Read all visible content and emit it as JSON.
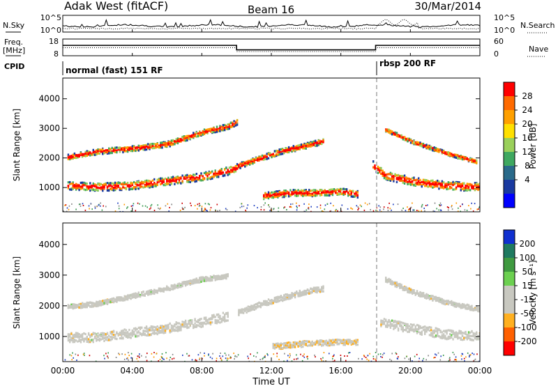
{
  "header": {
    "radar": "Adak West (fitACF)",
    "beam": "Beam 16",
    "date": "30/Mar/2014"
  },
  "noise_panel": {
    "left_label": "N.Sky",
    "right_label": "N.Search",
    "left_ticks": [
      "10^5",
      "10^0"
    ],
    "right_ticks": [
      "10^5",
      "10^0"
    ]
  },
  "freq_panel": {
    "left_label_1": "Freq.",
    "left_label_2": "[MHz]",
    "left_ticks": [
      "18",
      "8"
    ],
    "right_ticks": [
      "60",
      "0"
    ],
    "right_label": "Nave",
    "freq_steps": [
      {
        "t_start": 0,
        "t_end": 10,
        "level": 0.62
      },
      {
        "t_start": 10,
        "t_end": 18,
        "level": 0.35
      },
      {
        "t_start": 18,
        "t_end": 24,
        "level": 0.62
      }
    ],
    "nave_steps": [
      {
        "t_start": 0,
        "t_end": 10,
        "level": 0.48
      },
      {
        "t_start": 10,
        "t_end": 18,
        "level": 0.25
      },
      {
        "t_start": 18,
        "t_end": 24,
        "level": 0.48
      }
    ]
  },
  "cpid": {
    "label": "CPID",
    "segments": [
      {
        "t_start": 0,
        "t_end": 18,
        "text": "normal (fast) 151 RF"
      },
      {
        "t_start": 18,
        "t_end": 24,
        "text": "rbsp 200 RF"
      }
    ]
  },
  "power_panel": {
    "ylabel": "Slant Range [km]",
    "colorbar_title": "Power [dB]",
    "colorbar_ticks": [
      "28",
      "24",
      "20",
      "16",
      "12",
      "8",
      "4"
    ],
    "colorbar_colors": [
      "#ff0000",
      "#ff6a00",
      "#ffa000",
      "#ffe000",
      "#9ad05a",
      "#3fa860",
      "#2a6a8a",
      "#1a3aa0",
      "#0000ff"
    ]
  },
  "velocity_panel": {
    "ylabel": "Slant Range [km]",
    "colorbar_title": "Velocity [m s⁻¹]",
    "colorbar_ticks": [
      "200",
      "100",
      "50",
      "15",
      "-15",
      "-50",
      "-100",
      "-200"
    ],
    "colorbar_colors": [
      "#1030d0",
      "#1f7a60",
      "#3f9a40",
      "#6cd050",
      "#c8c8c0",
      "#c8c8c0",
      "#ffb020",
      "#ff6000",
      "#ff0000"
    ]
  },
  "xaxis": {
    "label": "Time UT",
    "ticks": [
      "00:00",
      "04:00",
      "08:00",
      "12:00",
      "16:00",
      "20:00",
      "00:00"
    ]
  },
  "chart_data": {
    "type": "heatmap",
    "x_range_hours": [
      0,
      24
    ],
    "y_range_km": [
      180,
      4700
    ],
    "yticks_km": [
      1000,
      2000,
      3000,
      4000
    ],
    "power_bands": [
      {
        "name": "lower band",
        "points": [
          [
            0.2,
            1100
          ],
          [
            2,
            1050
          ],
          [
            4,
            1100
          ],
          [
            6,
            1250
          ],
          [
            8,
            1400
          ],
          [
            9.5,
            1600
          ],
          [
            10,
            1700
          ]
        ],
        "width_km": 260
      },
      {
        "name": "upper band",
        "points": [
          [
            0.2,
            2050
          ],
          [
            2,
            2250
          ],
          [
            4,
            2350
          ],
          [
            6,
            2500
          ],
          [
            8,
            2900
          ],
          [
            9.5,
            3100
          ],
          [
            10,
            3250
          ]
        ],
        "width_km": 180
      },
      {
        "name": "mid band",
        "points": [
          [
            10,
            1750
          ],
          [
            11,
            1950
          ],
          [
            12.5,
            2250
          ],
          [
            14,
            2450
          ],
          [
            15,
            2600
          ]
        ],
        "width_km": 180
      },
      {
        "name": "near band",
        "points": [
          [
            11.5,
            750
          ],
          [
            13,
            850
          ],
          [
            14.5,
            850
          ],
          [
            16,
            900
          ],
          [
            17,
            800
          ]
        ],
        "width_km": 220
      },
      {
        "name": "post band",
        "points": [
          [
            17.8,
            1800
          ],
          [
            18.5,
            1450
          ],
          [
            20,
            1250
          ],
          [
            22,
            1100
          ],
          [
            24,
            1050
          ]
        ],
        "width_km": 280
      },
      {
        "name": "post upper",
        "points": [
          [
            18.5,
            3000
          ],
          [
            20,
            2600
          ],
          [
            22,
            2200
          ],
          [
            23.8,
            1900
          ]
        ],
        "width_km": 120
      }
    ],
    "velocity_bands": [
      {
        "name": "lower band",
        "points": [
          [
            0.2,
            1000
          ],
          [
            2,
            1000
          ],
          [
            4,
            1150
          ],
          [
            6,
            1300
          ],
          [
            8,
            1500
          ],
          [
            9.5,
            1700
          ]
        ],
        "width_km": 300
      },
      {
        "name": "upper band",
        "points": [
          [
            0.2,
            2000
          ],
          [
            2,
            2100
          ],
          [
            4,
            2350
          ],
          [
            6,
            2600
          ],
          [
            8,
            2900
          ],
          [
            9.5,
            3000
          ]
        ],
        "width_km": 150
      },
      {
        "name": "mid band",
        "points": [
          [
            10,
            1800
          ],
          [
            12,
            2200
          ],
          [
            14,
            2500
          ],
          [
            15,
            2600
          ]
        ],
        "width_km": 180
      },
      {
        "name": "near band",
        "points": [
          [
            12,
            700
          ],
          [
            14,
            800
          ],
          [
            16,
            850
          ],
          [
            17,
            850
          ]
        ],
        "width_km": 180
      },
      {
        "name": "post band",
        "points": [
          [
            18.2,
            1500
          ],
          [
            20,
            1300
          ],
          [
            22,
            1100
          ],
          [
            24,
            1050
          ]
        ],
        "width_km": 300
      },
      {
        "name": "post upper",
        "points": [
          [
            18.5,
            2900
          ],
          [
            20,
            2500
          ],
          [
            22,
            2150
          ],
          [
            24,
            1900
          ]
        ],
        "width_km": 150
      }
    ]
  }
}
